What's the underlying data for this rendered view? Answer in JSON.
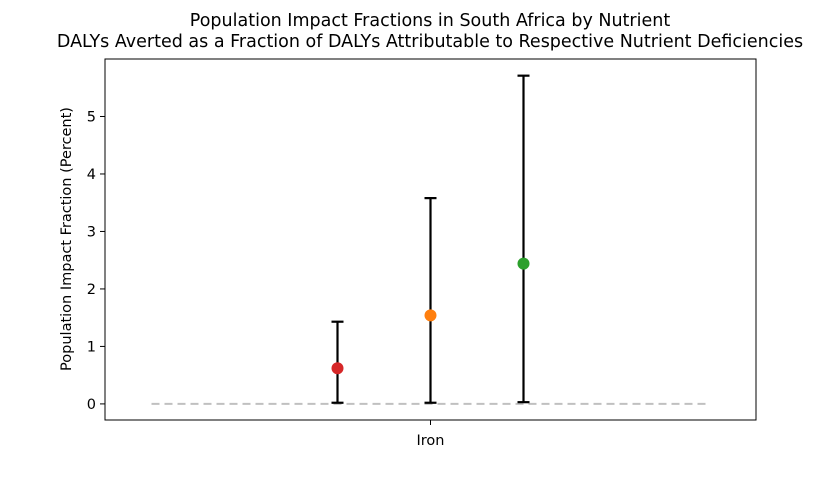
{
  "chart_data": {
    "type": "scatter",
    "title": "Population Impact Fractions in South Africa by Nutrient",
    "subtitle": "DALYs Averted as a Fraction of DALYs Attributable to Respective Nutrient Deficiencies",
    "xlabel": "",
    "ylabel": "Population Impact Fraction (Percent)",
    "categories": [
      "Iron"
    ],
    "ylim": [
      -0.28,
      6.0
    ],
    "yticks": [
      0,
      1,
      2,
      3,
      4,
      5
    ],
    "ytick_labels": [
      "0",
      "1",
      "2",
      "3",
      "4",
      "5"
    ],
    "grid": false,
    "legend": "none",
    "reference_line": {
      "y": 0,
      "x_range": [
        -0.6,
        0.6
      ],
      "style": "dashed",
      "color": "#c0c0c0"
    },
    "points": [
      {
        "x": -0.2,
        "y": 0.62,
        "lower": 0.02,
        "upper": 1.43,
        "color": "#d62728"
      },
      {
        "x": 0.0,
        "y": 1.54,
        "lower": 0.02,
        "upper": 3.58,
        "color": "#ff7f0e"
      },
      {
        "x": 0.2,
        "y": 2.44,
        "lower": 0.03,
        "upper": 5.71,
        "color": "#2ca02c"
      }
    ],
    "errorbar_color": "#000000"
  }
}
